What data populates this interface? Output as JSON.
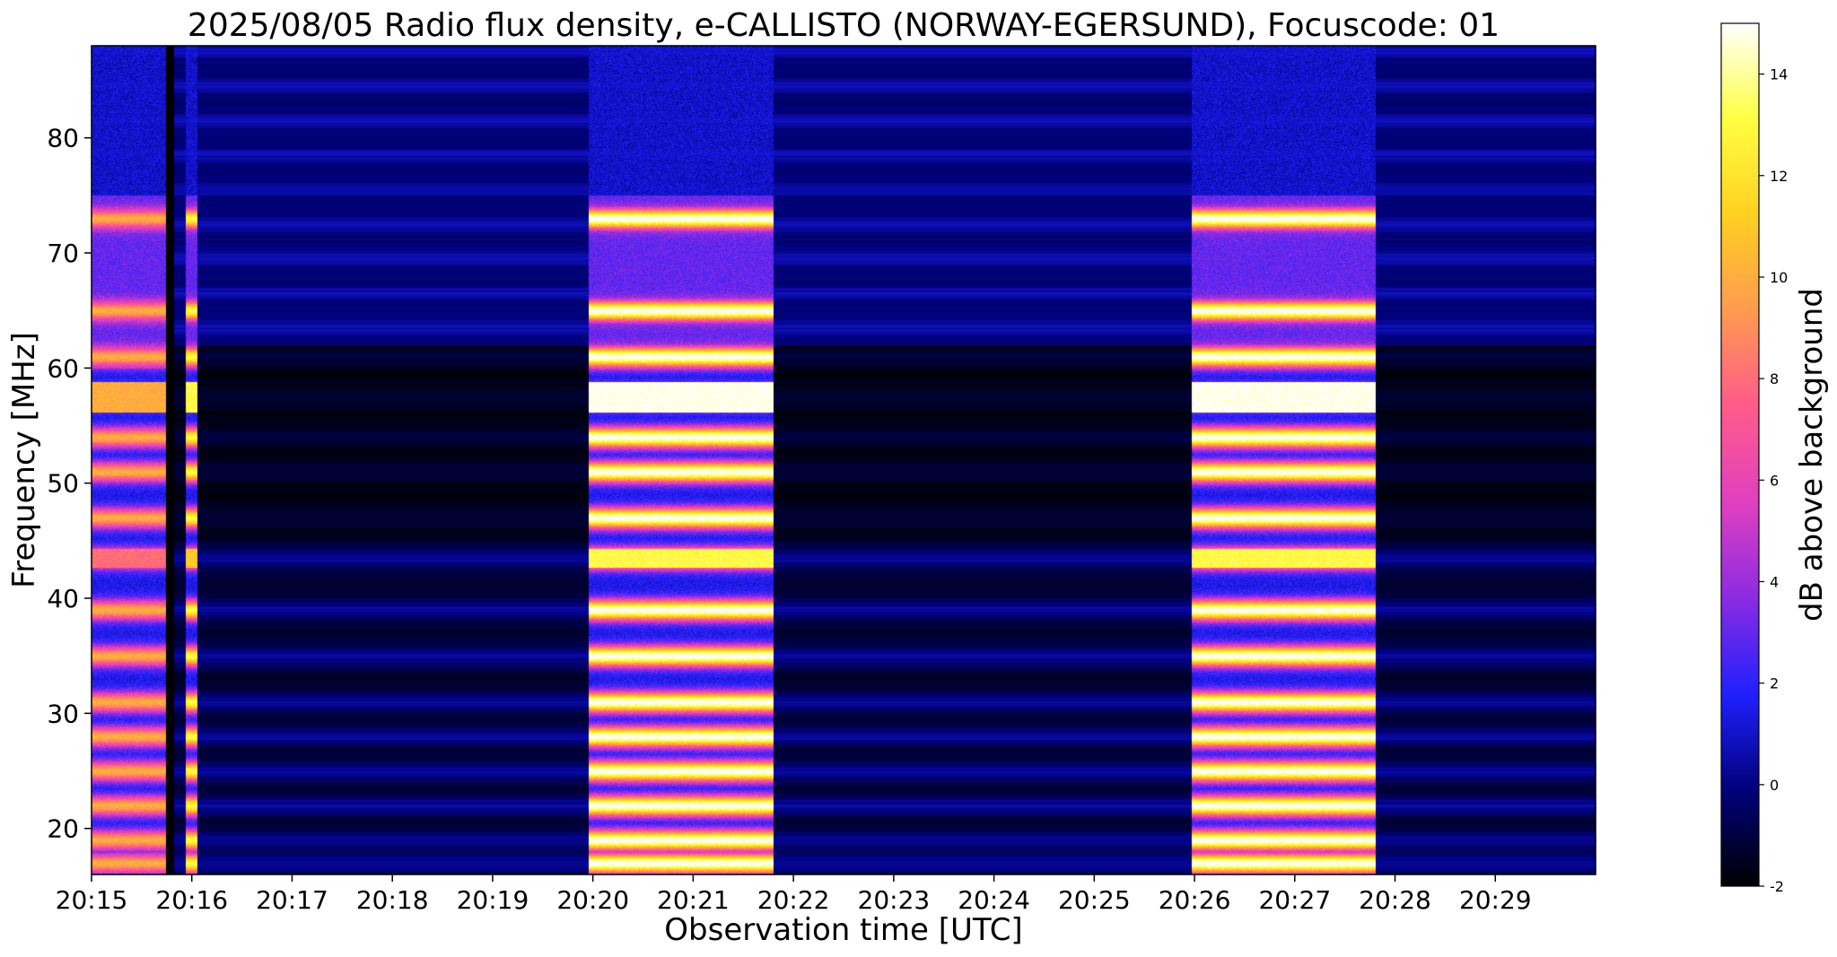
{
  "chart_data": {
    "type": "heatmap",
    "title": "2025/08/05  Radio flux density, e-CALLISTO (NORWAY-EGERSUND), Focuscode: 01",
    "xlabel": "Observation time [UTC]",
    "ylabel": "Frequency [MHz]",
    "x_ticks": [
      "20:15",
      "20:16",
      "20:17",
      "20:18",
      "20:19",
      "20:20",
      "20:21",
      "20:22",
      "20:23",
      "20:24",
      "20:25",
      "20:26",
      "20:27",
      "20:28",
      "20:29"
    ],
    "x_range_minutes": [
      0,
      15
    ],
    "y_ticks": [
      20,
      30,
      40,
      50,
      60,
      70,
      80
    ],
    "ylim": [
      16,
      88
    ],
    "colorbar": {
      "label": "dB above background",
      "range": [
        -2,
        15
      ],
      "ticks": [
        -2,
        0,
        2,
        4,
        6,
        8,
        10,
        12,
        14
      ],
      "colormap": [
        "#000000",
        "#00007a",
        "#2020ff",
        "#8a2be2",
        "#e040c0",
        "#ff5a8a",
        "#ff9a50",
        "#ffd020",
        "#ffff40",
        "#ffffff"
      ]
    },
    "bursts": [
      {
        "start": "20:15:00",
        "end": "20:15:47",
        "peak_db": 10
      },
      {
        "start": "20:15:56",
        "end": "20:16:03",
        "peak_db": 13
      },
      {
        "start": "20:19:57",
        "end": "20:21:48",
        "peak_db": 15
      },
      {
        "start": "20:25:58",
        "end": "20:27:48",
        "peak_db": 15
      }
    ],
    "strong_bands_mhz": [
      17,
      19,
      22,
      25,
      28,
      31,
      35,
      39,
      43.5,
      47,
      51,
      54,
      57.5,
      61,
      65,
      73
    ]
  }
}
